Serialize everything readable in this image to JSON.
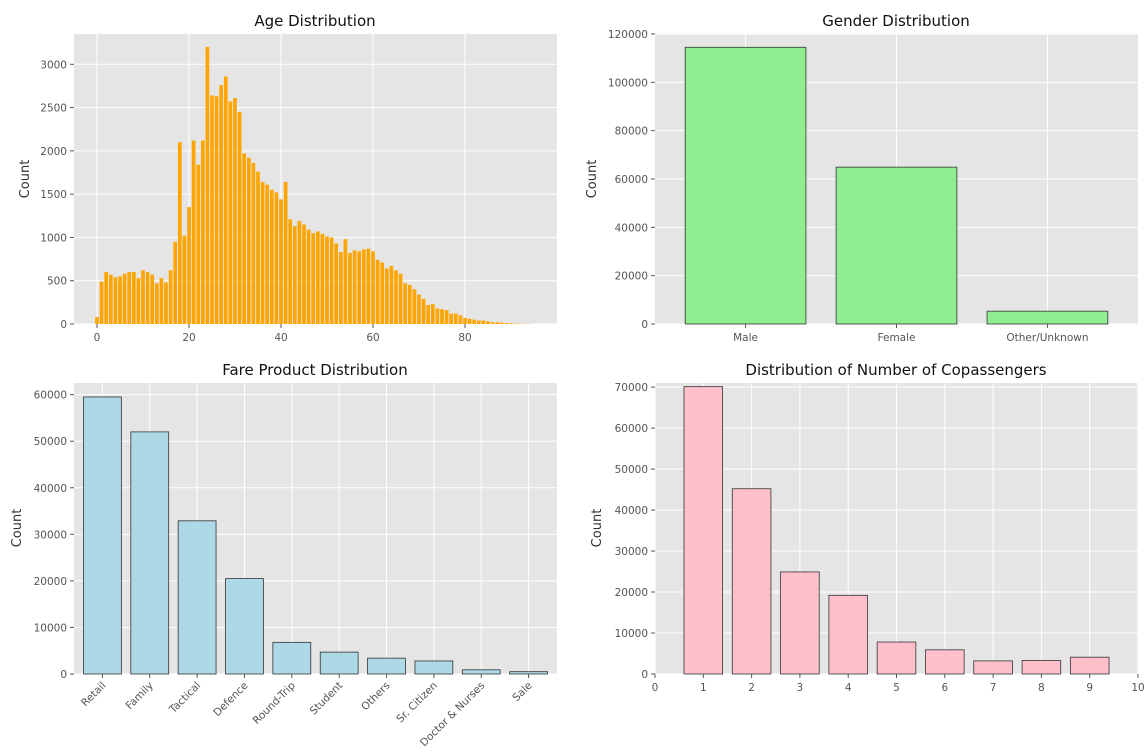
{
  "chart_data": [
    {
      "id": "age",
      "type": "bar",
      "title": "Age Distribution",
      "xlabel": "",
      "ylabel": "Count",
      "xlim": [
        -5,
        100
      ],
      "ylim": [
        0,
        3350
      ],
      "xticks": [
        "0",
        "20",
        "40",
        "60",
        "80"
      ],
      "xtick_values": [
        0,
        20,
        40,
        60,
        80
      ],
      "yticks": [
        "0",
        "500",
        "1000",
        "1500",
        "2000",
        "2500",
        "3000"
      ],
      "ytick_values": [
        0,
        500,
        1000,
        1500,
        2000,
        2500,
        3000
      ],
      "color": "#ffa500",
      "x": [
        0,
        1,
        2,
        3,
        4,
        5,
        6,
        7,
        8,
        9,
        10,
        11,
        12,
        13,
        14,
        15,
        16,
        17,
        18,
        19,
        20,
        21,
        22,
        23,
        24,
        25,
        26,
        27,
        28,
        29,
        30,
        31,
        32,
        33,
        34,
        35,
        36,
        37,
        38,
        39,
        40,
        41,
        42,
        43,
        44,
        45,
        46,
        47,
        48,
        49,
        50,
        51,
        52,
        53,
        54,
        55,
        56,
        57,
        58,
        59,
        60,
        61,
        62,
        63,
        64,
        65,
        66,
        67,
        68,
        69,
        70,
        71,
        72,
        73,
        74,
        75,
        76,
        77,
        78,
        79,
        80,
        81,
        82,
        83,
        84,
        85,
        86,
        87,
        88,
        89,
        90,
        91,
        92,
        93,
        94
      ],
      "values": [
        80,
        490,
        600,
        570,
        540,
        550,
        580,
        600,
        600,
        530,
        620,
        600,
        570,
        470,
        530,
        480,
        620,
        950,
        2100,
        1020,
        1350,
        2120,
        1840,
        2120,
        3200,
        2640,
        2630,
        2760,
        2860,
        2570,
        2610,
        2450,
        1970,
        1920,
        1860,
        1760,
        1640,
        1610,
        1550,
        1520,
        1440,
        1640,
        1210,
        1130,
        1190,
        1150,
        1090,
        1050,
        1070,
        1040,
        1010,
        1000,
        930,
        830,
        980,
        820,
        850,
        840,
        860,
        870,
        840,
        740,
        710,
        640,
        670,
        620,
        580,
        470,
        450,
        400,
        340,
        290,
        220,
        230,
        180,
        170,
        160,
        120,
        120,
        100,
        70,
        60,
        50,
        40,
        40,
        30,
        20,
        20,
        15,
        10,
        8,
        5,
        4,
        3,
        2
      ]
    },
    {
      "id": "gender",
      "type": "bar",
      "title": "Gender Distribution",
      "xlabel": "",
      "ylabel": "Count",
      "ylim": [
        0,
        120000
      ],
      "yticks": [
        "0",
        "20000",
        "40000",
        "60000",
        "80000",
        "100000",
        "120000"
      ],
      "ytick_values": [
        0,
        20000,
        40000,
        60000,
        80000,
        100000,
        120000
      ],
      "color": "#90ee90",
      "categories": [
        "Male",
        "Female",
        "Other/Unknown"
      ],
      "values": [
        114500,
        64900,
        5300
      ]
    },
    {
      "id": "fare",
      "type": "bar",
      "title": "Fare Product Distribution",
      "xlabel": "",
      "ylabel": "Count",
      "ylim": [
        0,
        62500
      ],
      "yticks": [
        "0",
        "10000",
        "20000",
        "30000",
        "40000",
        "50000",
        "60000"
      ],
      "ytick_values": [
        0,
        10000,
        20000,
        30000,
        40000,
        50000,
        60000
      ],
      "color": "#add8e6",
      "categories": [
        "Retail",
        "Family",
        "Tactical",
        "Defence",
        "Round-Trip",
        "Student",
        "Others",
        "Sr. Citizen",
        "Doctor & Nurses",
        "Sale"
      ],
      "values": [
        59500,
        52000,
        32900,
        20500,
        6800,
        4700,
        3400,
        2800,
        900,
        500
      ]
    },
    {
      "id": "copass",
      "type": "bar",
      "title": "Distribution of Number of Copassengers",
      "xlabel": "",
      "ylabel": "Count",
      "xlim": [
        0,
        10
      ],
      "ylim": [
        0,
        71000
      ],
      "xticks": [
        "0",
        "1",
        "2",
        "3",
        "4",
        "5",
        "6",
        "7",
        "8",
        "9",
        "10"
      ],
      "xtick_values": [
        0,
        1,
        2,
        3,
        4,
        5,
        6,
        7,
        8,
        9,
        10
      ],
      "yticks": [
        "0",
        "10000",
        "20000",
        "30000",
        "40000",
        "50000",
        "60000",
        "70000"
      ],
      "ytick_values": [
        0,
        10000,
        20000,
        30000,
        40000,
        50000,
        60000,
        70000
      ],
      "color": "#ffc0cb",
      "x": [
        1,
        2,
        3,
        4,
        5,
        6,
        7,
        8,
        9
      ],
      "values": [
        70100,
        45200,
        24900,
        19200,
        7800,
        5900,
        3200,
        3300,
        4100
      ]
    }
  ]
}
